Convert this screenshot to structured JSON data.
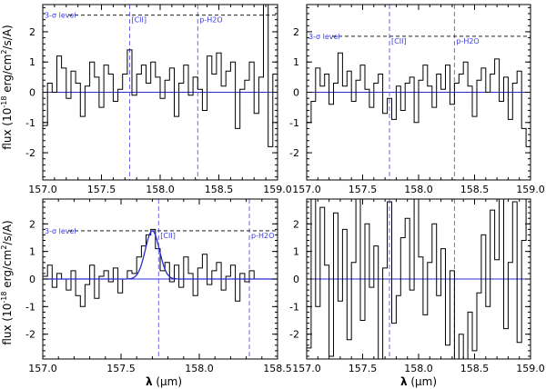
{
  "figure": {
    "ylabel": "flux (10",
    "ylabel_sup": "-18",
    "ylabel_rest": " erg/cm",
    "ylabel_sup2": "2",
    "ylabel_tail": "/s/A)",
    "xlabel_symbol": "λ",
    "xlabel_unit": " (μm)"
  },
  "chart_data": [
    {
      "type": "line",
      "xlim": [
        157.0,
        159.0
      ],
      "ylim": [
        -2.9,
        2.9
      ],
      "xticks": [
        157.0,
        157.5,
        158.0,
        158.5,
        159.0
      ],
      "xtick_labels": [
        "157.0",
        "157.5",
        "158.0",
        "158.5",
        "159.0"
      ],
      "yticks": [
        -2,
        -1,
        0,
        1,
        2
      ],
      "ytick_labels": [
        "-2",
        "-1",
        "0",
        "1",
        "2"
      ],
      "sigma_level": 2.55,
      "sigma_label": "3-σ level",
      "lines": [
        {
          "x": 157.74,
          "label": "[CII]"
        },
        {
          "x": 158.32,
          "label": "p-H2O"
        }
      ],
      "series": [
        {
          "x": [
            157.0,
            157.04,
            157.08,
            157.12,
            157.16,
            157.2,
            157.24,
            157.28,
            157.32,
            157.36,
            157.4,
            157.44,
            157.48,
            157.52,
            157.56,
            157.6,
            157.64,
            157.68,
            157.72,
            157.76,
            157.8,
            157.84,
            157.88,
            157.92,
            157.96,
            158.0,
            158.04,
            158.08,
            158.12,
            158.16,
            158.2,
            158.24,
            158.28,
            158.32,
            158.36,
            158.4,
            158.44,
            158.48,
            158.52,
            158.56,
            158.6,
            158.64,
            158.68,
            158.72,
            158.76,
            158.8,
            158.84,
            158.88,
            158.92,
            158.96
          ],
          "values": [
            -1.1,
            0.3,
            0.0,
            1.2,
            0.8,
            -0.2,
            0.7,
            0.3,
            -0.8,
            0.2,
            1.0,
            0.5,
            -0.5,
            0.9,
            0.6,
            -0.3,
            0.1,
            0.6,
            1.4,
            -0.1,
            0.6,
            0.9,
            0.3,
            1.0,
            0.5,
            -0.2,
            0.4,
            0.8,
            -0.8,
            0.3,
            0.9,
            -0.1,
            0.5,
            0.1,
            -0.6,
            1.2,
            0.6,
            1.3,
            0.2,
            0.7,
            1.0,
            -1.2,
            0.1,
            0.4,
            1.0,
            -0.7,
            0.5,
            2.9,
            -1.8,
            0.6
          ]
        }
      ]
    },
    {
      "type": "line",
      "xlim": [
        157.0,
        159.0
      ],
      "ylim": [
        -2.9,
        2.9
      ],
      "xticks": [
        157.0,
        157.5,
        158.0,
        158.5,
        159.0
      ],
      "xtick_labels": [
        "157.0",
        "157.5",
        "158.0",
        "158.5",
        "159.0"
      ],
      "yticks": [
        -2,
        -1,
        0,
        1,
        2
      ],
      "ytick_labels": [
        "-2",
        "-1",
        "0",
        "1",
        "2"
      ],
      "sigma_level": 1.85,
      "sigma_label": "3-σ level",
      "lines": [
        {
          "x": 157.74,
          "label": "[CII]"
        },
        {
          "x": 158.32,
          "label": "p-H2O"
        }
      ],
      "series": [
        {
          "x": [
            157.0,
            157.04,
            157.08,
            157.12,
            157.16,
            157.2,
            157.24,
            157.28,
            157.32,
            157.36,
            157.4,
            157.44,
            157.48,
            157.52,
            157.56,
            157.6,
            157.64,
            157.68,
            157.72,
            157.76,
            157.8,
            157.84,
            157.88,
            157.92,
            157.96,
            158.0,
            158.04,
            158.08,
            158.12,
            158.16,
            158.2,
            158.24,
            158.28,
            158.32,
            158.36,
            158.4,
            158.44,
            158.48,
            158.52,
            158.56,
            158.6,
            158.64,
            158.68,
            158.72,
            158.76,
            158.8,
            158.84,
            158.88,
            158.92,
            158.96
          ],
          "values": [
            -1.0,
            -0.3,
            0.8,
            0.2,
            0.6,
            -0.4,
            0.3,
            1.3,
            0.2,
            0.7,
            -0.3,
            0.4,
            0.9,
            0.1,
            -0.5,
            0.3,
            0.6,
            -0.7,
            -0.2,
            -0.9,
            0.2,
            -0.6,
            0.3,
            0.5,
            -1.0,
            0.4,
            0.9,
            0.2,
            -0.5,
            0.6,
            0.1,
            0.9,
            -0.4,
            0.3,
            0.6,
            1.0,
            0.2,
            -0.8,
            0.4,
            0.8,
            0.0,
            0.6,
            1.1,
            -0.3,
            0.5,
            -0.9,
            0.3,
            0.7,
            -1.2,
            -1.8
          ]
        }
      ]
    },
    {
      "type": "line",
      "xlim": [
        157.0,
        158.5
      ],
      "ylim": [
        -2.9,
        2.9
      ],
      "xticks": [
        157.0,
        157.5,
        158.0,
        158.5
      ],
      "xtick_labels": [
        "157.0",
        "157.5",
        "158.0",
        "158.5"
      ],
      "yticks": [
        -2,
        -1,
        0,
        1,
        2
      ],
      "ytick_labels": [
        "-2",
        "-1",
        "0",
        "1",
        "2"
      ],
      "sigma_level": 1.75,
      "sigma_label": "3-σ level",
      "lines": [
        {
          "x": 157.74,
          "label": "[CII]"
        },
        {
          "x": 158.32,
          "label": "p-H2O"
        }
      ],
      "gaussian_fit": {
        "amplitude": 1.75,
        "center": 157.7,
        "sigma": 0.045
      },
      "series": [
        {
          "x": [
            157.0,
            157.03,
            157.06,
            157.09,
            157.12,
            157.15,
            157.18,
            157.21,
            157.24,
            157.27,
            157.3,
            157.33,
            157.36,
            157.39,
            157.42,
            157.45,
            157.48,
            157.51,
            157.54,
            157.57,
            157.6,
            157.63,
            157.66,
            157.69,
            157.72,
            157.75,
            157.78,
            157.81,
            157.84,
            157.87,
            157.9,
            157.93,
            157.96,
            157.99,
            158.02,
            158.05,
            158.08,
            158.11,
            158.14,
            158.17,
            158.2,
            158.23,
            158.26,
            158.29,
            158.32,
            158.35
          ],
          "values": [
            0.1,
            0.5,
            -0.3,
            0.2,
            0.0,
            -0.4,
            0.3,
            -0.6,
            -1.0,
            -0.2,
            0.5,
            -0.7,
            0.1,
            0.3,
            -0.1,
            0.4,
            -0.5,
            0.0,
            0.3,
            0.2,
            0.8,
            1.2,
            1.6,
            1.8,
            1.1,
            0.3,
            0.6,
            -0.1,
            0.5,
            -0.3,
            0.8,
            0.2,
            -0.6,
            0.4,
            0.9,
            -0.2,
            0.3,
            0.6,
            -0.4,
            0.1,
            0.5,
            -0.8,
            0.2,
            -0.1,
            0.3,
            0.0
          ]
        }
      ]
    },
    {
      "type": "line",
      "xlim": [
        157.0,
        159.0
      ],
      "ylim": [
        -2.9,
        2.9
      ],
      "xticks": [
        157.0,
        157.5,
        158.0,
        158.5,
        159.0
      ],
      "xtick_labels": [
        "157.0",
        "157.5",
        "158.0",
        "158.5",
        "159.0"
      ],
      "yticks": [
        -2,
        -1,
        0,
        1,
        2
      ],
      "ytick_labels": [
        "-2",
        "-1",
        "0",
        "1",
        "2"
      ],
      "lines": [
        {
          "x": 157.74,
          "label": ""
        },
        {
          "x": 158.32,
          "label": ""
        }
      ],
      "series": [
        {
          "x": [
            157.0,
            157.04,
            157.08,
            157.12,
            157.16,
            157.2,
            157.24,
            157.28,
            157.32,
            157.36,
            157.4,
            157.44,
            157.48,
            157.52,
            157.56,
            157.6,
            157.64,
            157.68,
            157.72,
            157.76,
            157.8,
            157.84,
            157.88,
            157.92,
            157.96,
            158.0,
            158.04,
            158.08,
            158.12,
            158.16,
            158.2,
            158.24,
            158.28,
            158.32,
            158.36,
            158.4,
            158.44,
            158.48,
            158.52,
            158.56,
            158.6,
            158.64,
            158.68,
            158.72,
            158.76,
            158.8,
            158.84,
            158.88,
            158.92,
            158.96
          ],
          "values": [
            -2.5,
            3.0,
            -1.0,
            2.6,
            0.5,
            -2.8,
            2.4,
            -0.8,
            1.8,
            -2.2,
            0.6,
            3.0,
            -1.5,
            2.0,
            -0.3,
            1.2,
            -2.9,
            0.4,
            2.8,
            -1.6,
            -0.6,
            1.5,
            2.2,
            -0.4,
            2.9,
            0.8,
            -1.3,
            0.6,
            2.0,
            -0.6,
            1.1,
            -2.4,
            0.3,
            -2.9,
            -2.0,
            -3.0,
            -1.2,
            -2.6,
            -0.5,
            1.6,
            -1.0,
            2.5,
            0.7,
            3.0,
            -1.8,
            0.6,
            2.8,
            -2.3,
            1.4,
            3.0
          ]
        }
      ]
    }
  ]
}
